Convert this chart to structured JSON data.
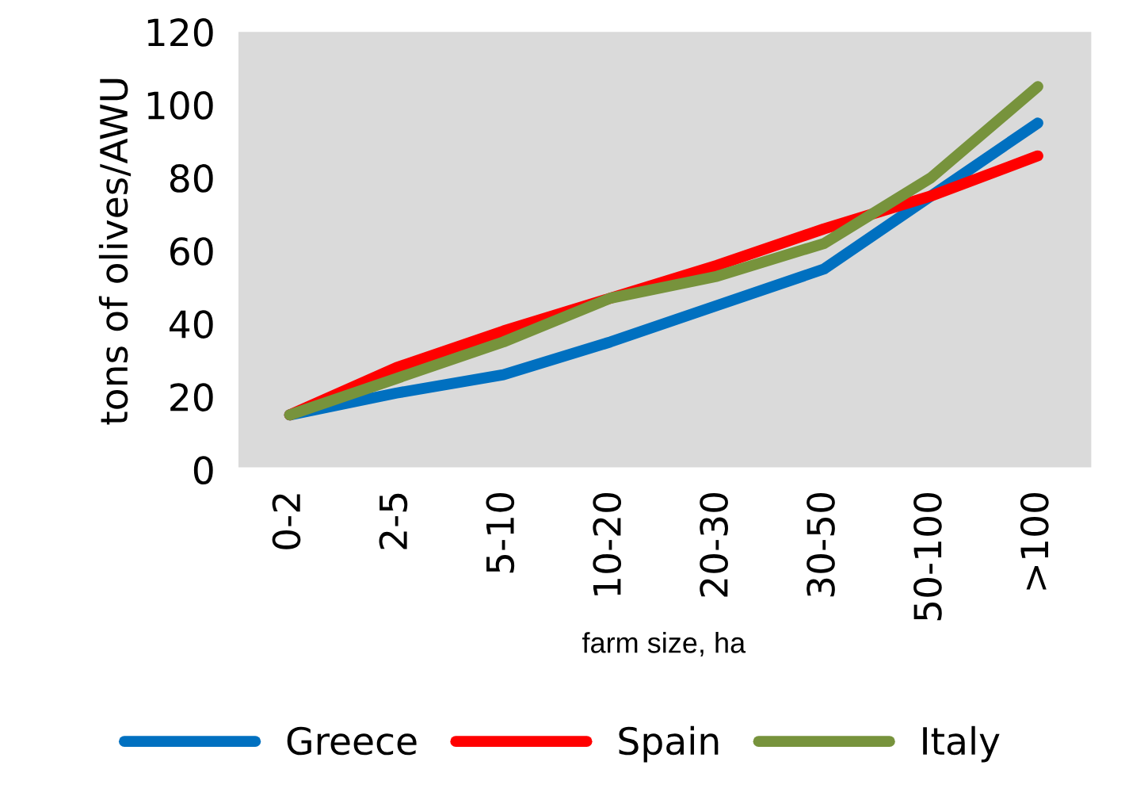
{
  "chart_data": {
    "type": "line",
    "xlabel": "farm size, ha",
    "ylabel": "tons of olives/AWU",
    "categories": [
      "0-2",
      "2-5",
      "5-10",
      "10-20",
      "20-30",
      "30-50",
      "50-100",
      ">100"
    ],
    "series": [
      {
        "name": "Greece",
        "color": "#0070c0",
        "values": [
          15,
          21,
          26,
          35,
          45,
          55,
          75,
          95
        ]
      },
      {
        "name": "Spain",
        "color": "#ff0000",
        "values": [
          15,
          28,
          38,
          47,
          56,
          66,
          75,
          86
        ]
      },
      {
        "name": "Italy",
        "color": "#77933c",
        "values": [
          15,
          25,
          35,
          47,
          53,
          62,
          80,
          105
        ]
      }
    ],
    "ylim": [
      0,
      120
    ],
    "yticks": [
      0,
      20,
      40,
      60,
      80,
      100,
      120
    ],
    "grid": false,
    "legend": "bottom",
    "marker": "none",
    "line_style": "solid"
  }
}
